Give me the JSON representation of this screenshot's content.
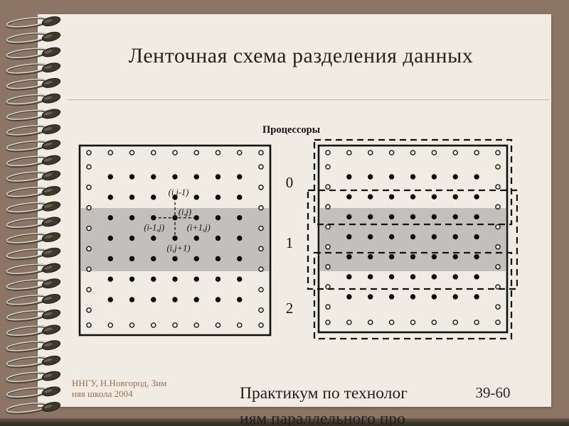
{
  "slide": {
    "title": "Ленточная схема разделения данных"
  },
  "diagram": {
    "processors_label": "Процессоры",
    "processor_rows": [
      "0",
      "1",
      "2"
    ],
    "stencil": {
      "top": "(i,j-1)",
      "center": "(i,j)",
      "left": "(i-1,j)",
      "right": "(i+1,j)",
      "bottom": "(i,j+1)"
    },
    "grid": {
      "columns": 9,
      "interior_rows": 7,
      "band_rows": [
        3,
        4,
        5
      ],
      "boundary_marker": "open-circle",
      "interior_marker": "filled-dot",
      "dashed_partitions": 3
    }
  },
  "footer": {
    "org_lines": [
      "ННГУ, Н.Новгород, Зим",
      "няя школа 2004"
    ],
    "course_lines": [
      "Практикум по технолог",
      "иям параллельного про"
    ],
    "page_label": "39-60"
  },
  "colors": {
    "background": "#8C7565",
    "slide": "#F0ECE4",
    "band": "#C1C0BD",
    "divider": "#C9B394",
    "ink": "#2A211B",
    "footer_org": "#9C6F50",
    "diagram_ink": "#111111"
  }
}
